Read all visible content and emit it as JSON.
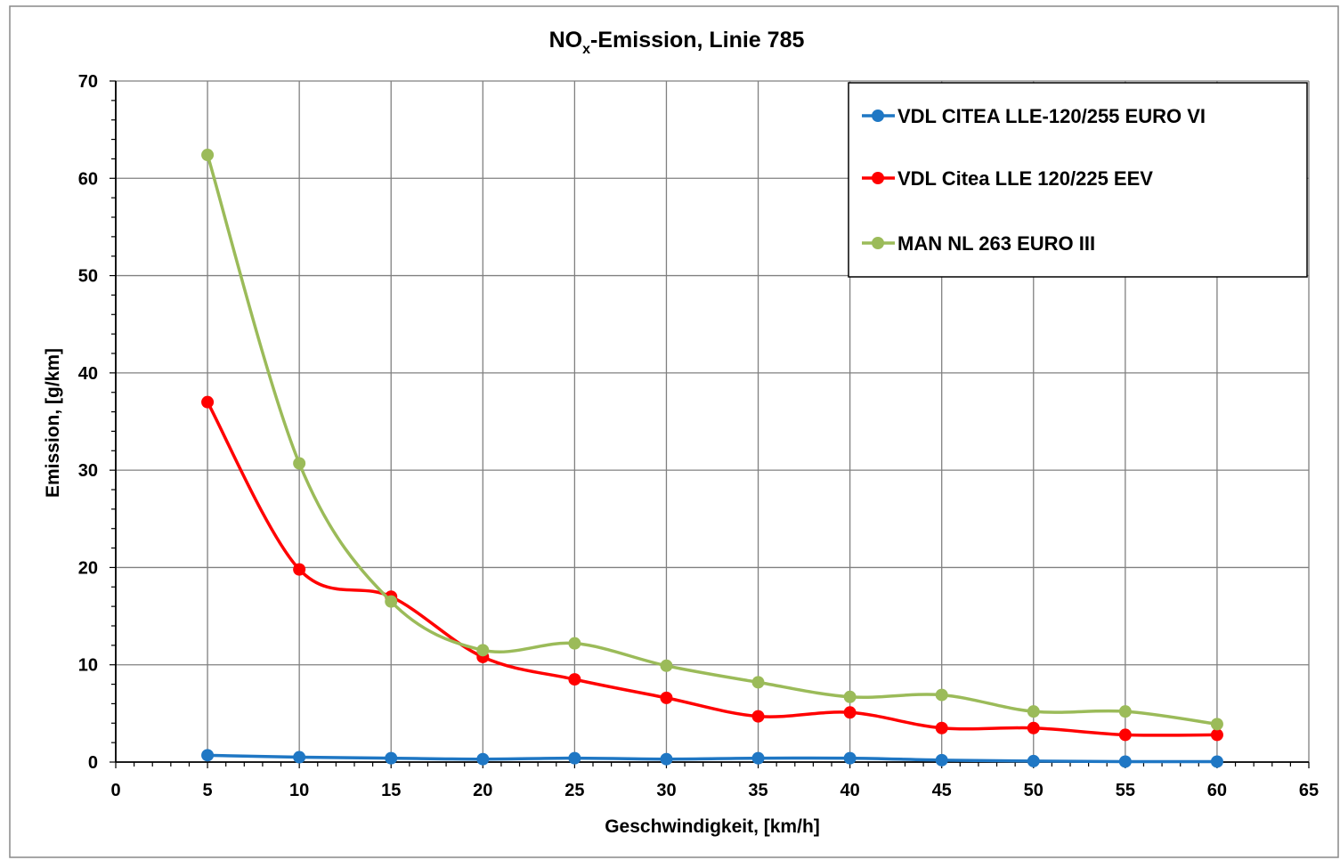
{
  "chart_data": {
    "type": "line",
    "title": "NO",
    "title_subscript": "x",
    "title_suffix": "-Emission,  Linie  785",
    "xlabel": "Geschwindigkeit, [km/h]",
    "ylabel": "Emission, [g/km]",
    "xlim": [
      0,
      65
    ],
    "ylim": [
      0,
      70
    ],
    "xticks": [
      0,
      5,
      10,
      15,
      20,
      25,
      30,
      35,
      40,
      45,
      50,
      55,
      60,
      65
    ],
    "yticks": [
      0,
      10,
      20,
      30,
      40,
      50,
      60,
      70
    ],
    "grid": true,
    "legend_position": "top-right",
    "x": [
      5,
      10,
      15,
      20,
      25,
      30,
      35,
      40,
      45,
      50,
      55,
      60
    ],
    "series": [
      {
        "name": "VDL CITEA LLE-120/255 EURO VI",
        "color": "#1f77c4",
        "values": [
          0.7,
          0.5,
          0.4,
          0.3,
          0.4,
          0.3,
          0.4,
          0.4,
          0.2,
          0.1,
          0.05,
          0.05
        ]
      },
      {
        "name": "VDL Citea LLE 120/225 EEV",
        "color": "#ff0000",
        "values": [
          37.0,
          19.8,
          17.0,
          10.8,
          8.5,
          6.6,
          4.7,
          5.1,
          3.5,
          3.5,
          2.8,
          2.8
        ]
      },
      {
        "name": "MAN NL 263 EURO III",
        "color": "#9bbb59",
        "values": [
          62.4,
          30.7,
          16.5,
          11.5,
          12.2,
          9.9,
          8.2,
          6.7,
          6.9,
          5.2,
          5.2,
          3.9
        ]
      }
    ]
  }
}
